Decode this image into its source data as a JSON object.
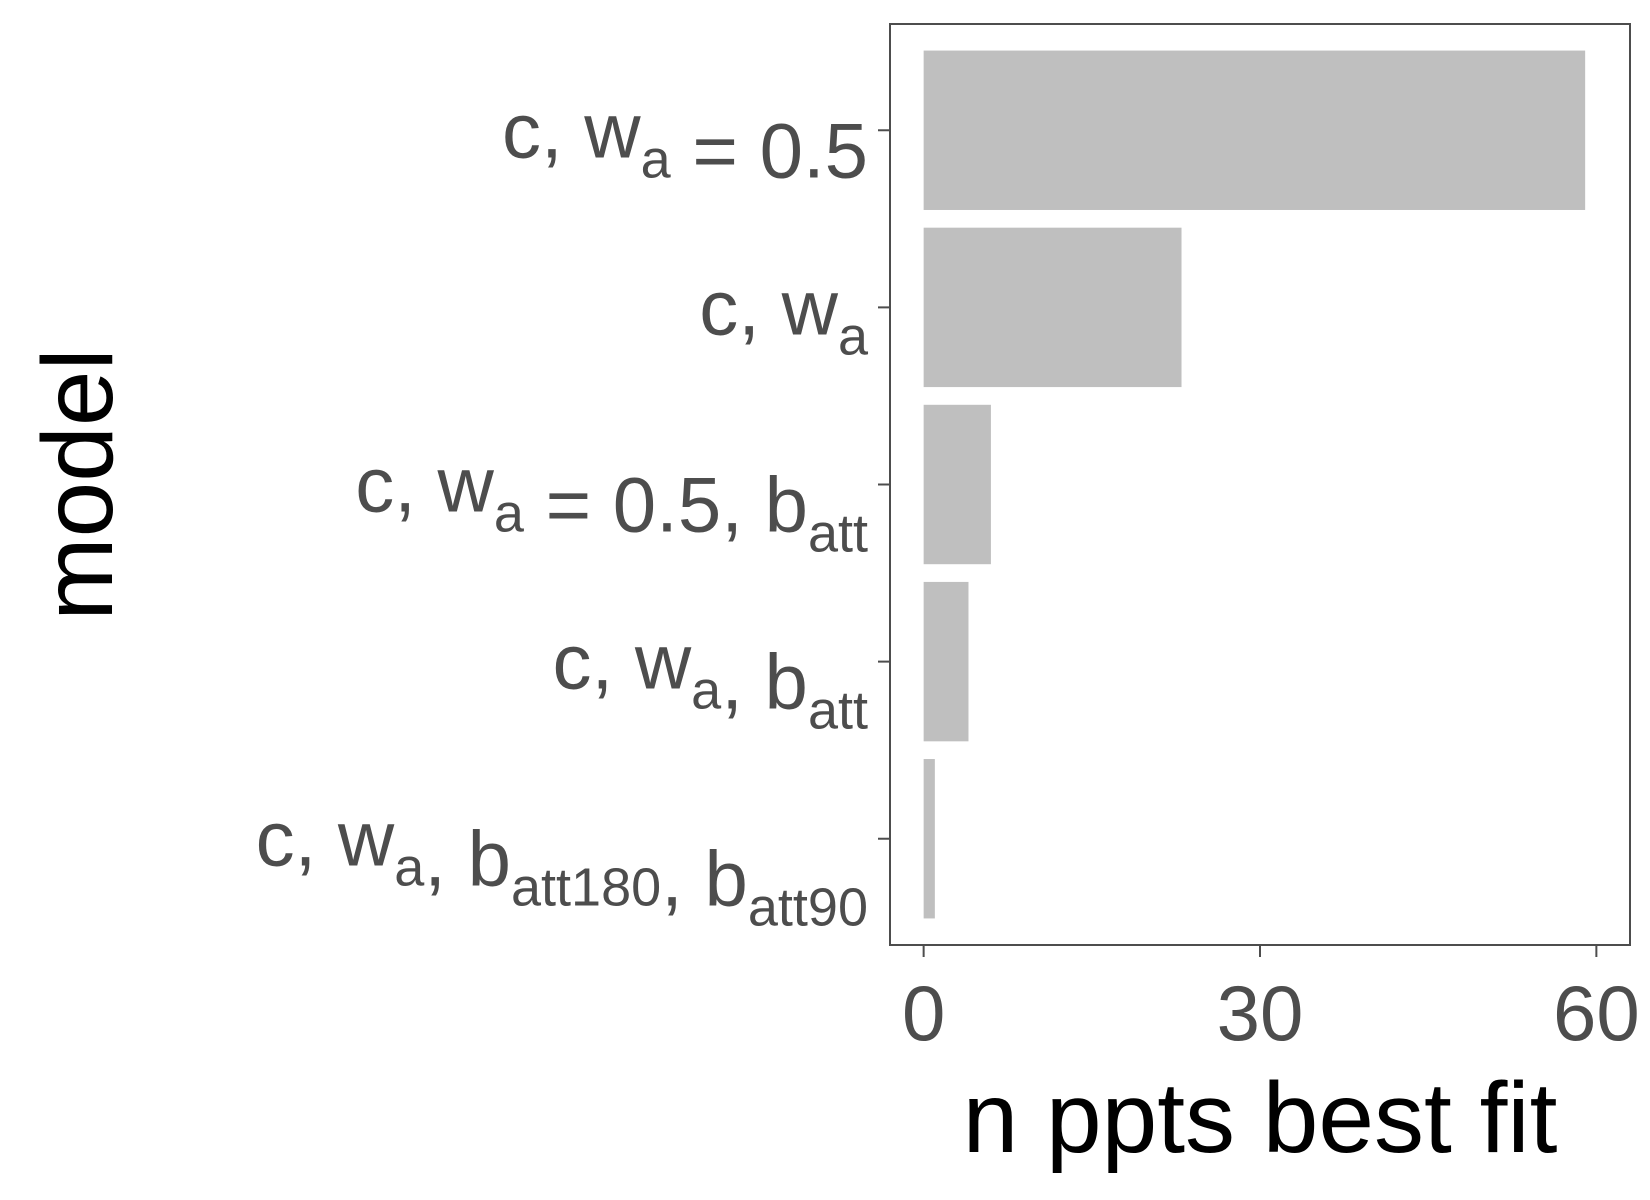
{
  "chart_data": {
    "type": "bar",
    "orientation": "horizontal",
    "categories": [
      [
        {
          "t": "c, w"
        },
        {
          "t": "a",
          "sub": true
        },
        {
          "t": " = 0.5"
        }
      ],
      [
        {
          "t": "c, w"
        },
        {
          "t": "a",
          "sub": true
        }
      ],
      [
        {
          "t": "c, w"
        },
        {
          "t": "a",
          "sub": true
        },
        {
          "t": " = 0.5, b"
        },
        {
          "t": "att",
          "sub": true
        }
      ],
      [
        {
          "t": "c, w"
        },
        {
          "t": "a",
          "sub": true
        },
        {
          "t": ", b"
        },
        {
          "t": "att",
          "sub": true
        }
      ],
      [
        {
          "t": "c, w"
        },
        {
          "t": "a",
          "sub": true
        },
        {
          "t": ", b"
        },
        {
          "t": "att180",
          "sub": true
        },
        {
          "t": ", b"
        },
        {
          "t": "att90",
          "sub": true
        }
      ]
    ],
    "values": [
      59,
      23,
      6,
      4,
      1
    ],
    "xlabel": "n ppts best fit",
    "ylabel": "model",
    "xlim": [
      -3,
      63
    ],
    "xticks": [
      0,
      30,
      60
    ],
    "xtick_labels": [
      "0",
      "30",
      "60"
    ],
    "grid": false,
    "bar_color": "#bfbfbf",
    "frame_color": "#4d4d4d"
  }
}
